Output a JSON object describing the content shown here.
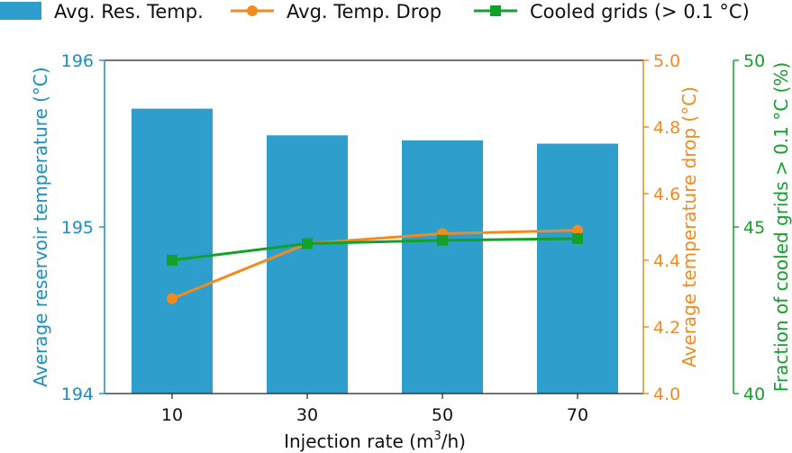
{
  "chart_data": {
    "type": "bar+line",
    "categories": [
      "10",
      "30",
      "50",
      "70"
    ],
    "xlabel": "Injection rate (m3/h)",
    "xlabel_main": "Injection rate (m",
    "xlabel_sup": "3",
    "xlabel_tail": "/h)",
    "series": [
      {
        "name": "Avg. Res. Temp.",
        "kind": "bar",
        "axis": "left",
        "color": "#2e9fcd",
        "values": [
          195.71,
          195.55,
          195.52,
          195.5
        ]
      },
      {
        "name": "Avg. Temp. Drop",
        "kind": "line",
        "marker": "circle",
        "axis": "right1",
        "color": "#f28a1e",
        "values": [
          4.285,
          4.45,
          4.48,
          4.49
        ]
      },
      {
        "name": "Cooled grids (> 0.1 °C)",
        "kind": "line",
        "marker": "square",
        "axis": "right2",
        "color": "#12a12a",
        "values": [
          44.0,
          44.5,
          44.6,
          44.65
        ]
      }
    ],
    "axes": {
      "left": {
        "label": "Average reservoir temperature (°C)",
        "ylim": [
          194,
          196
        ],
        "ticks": [
          "194",
          "195",
          "196"
        ],
        "color": "#1a8fc4"
      },
      "right1": {
        "label": "Average temperature drop (°C)",
        "ylim": [
          4.0,
          5.0
        ],
        "ticks": [
          "4.0",
          "4.2",
          "4.4",
          "4.6",
          "4.8",
          "5.0"
        ],
        "color": "#f28a1e"
      },
      "right2": {
        "label": "Fraction of cooled grids > 0.1 °C (%)",
        "ylim": [
          40,
          50
        ],
        "ticks": [
          "40",
          "45",
          "50"
        ],
        "color": "#12a12a"
      }
    },
    "legend": "top, outside plot"
  }
}
